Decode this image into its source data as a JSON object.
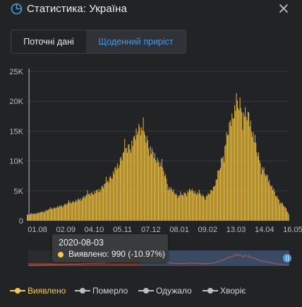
{
  "header": {
    "title": "Статистика: Україна"
  },
  "tabs": [
    {
      "label": "Поточні дані",
      "active": false
    },
    {
      "label": "Щоденний приріст",
      "active": true
    }
  ],
  "tooltip": {
    "date": "2020-08-03",
    "value_text": "Виявлено: 990 (-10.97%)"
  },
  "legend": [
    {
      "label": "Виявлено",
      "color": "#f2c94c",
      "active": true
    },
    {
      "label": "Померло",
      "color": "#bdbdbd",
      "active": false
    },
    {
      "label": "Одужало",
      "color": "#bdbdbd",
      "active": false
    },
    {
      "label": "Хворіє",
      "color": "#bdbdbd",
      "active": false
    }
  ],
  "colors": {
    "accent": "#4a98e0",
    "bar": "#f2c94c",
    "background": "#222324"
  },
  "chart_data": {
    "type": "bar",
    "series_name": "Виявлено",
    "y_ticks": [
      "0",
      "5K",
      "10K",
      "15K",
      "20K",
      "25K"
    ],
    "ylim": [
      0,
      25000
    ],
    "x_tick_labels": [
      "01.08",
      "02.09",
      "04.10",
      "05.11",
      "07.12",
      "08.01",
      "09.02",
      "13.03",
      "14.04",
      "16.05"
    ],
    "x_tick_index": [
      0,
      32,
      64,
      96,
      128,
      160,
      192,
      224,
      256,
      288
    ],
    "selected_index": 2,
    "profile_points": [
      [
        0,
        990
      ],
      [
        10,
        1200
      ],
      [
        20,
        1650
      ],
      [
        30,
        2100
      ],
      [
        40,
        2600
      ],
      [
        50,
        3050
      ],
      [
        60,
        3700
      ],
      [
        70,
        4400
      ],
      [
        80,
        5100
      ],
      [
        90,
        6300
      ],
      [
        100,
        8800
      ],
      [
        110,
        11500
      ],
      [
        120,
        13500
      ],
      [
        125,
        15800
      ],
      [
        130,
        14800
      ],
      [
        135,
        13600
      ],
      [
        140,
        11900
      ],
      [
        145,
        10600
      ],
      [
        150,
        9300
      ],
      [
        155,
        7900
      ],
      [
        160,
        5600
      ],
      [
        165,
        5000
      ],
      [
        170,
        4000
      ],
      [
        175,
        4300
      ],
      [
        180,
        4900
      ],
      [
        185,
        5200
      ],
      [
        190,
        4600
      ],
      [
        195,
        4400
      ],
      [
        200,
        4100
      ],
      [
        205,
        4500
      ],
      [
        210,
        5400
      ],
      [
        215,
        7300
      ],
      [
        220,
        10600
      ],
      [
        225,
        14000
      ],
      [
        230,
        16600
      ],
      [
        235,
        18700
      ],
      [
        240,
        19500
      ],
      [
        245,
        18200
      ],
      [
        250,
        17000
      ],
      [
        255,
        14000
      ],
      [
        260,
        11200
      ],
      [
        265,
        9200
      ],
      [
        270,
        7300
      ],
      [
        275,
        5900
      ],
      [
        280,
        4300
      ],
      [
        285,
        3400
      ],
      [
        290,
        2400
      ],
      [
        295,
        1100
      ]
    ],
    "grid": true,
    "navigator": {
      "range_start": 0.43,
      "range_end": 1.0
    }
  }
}
